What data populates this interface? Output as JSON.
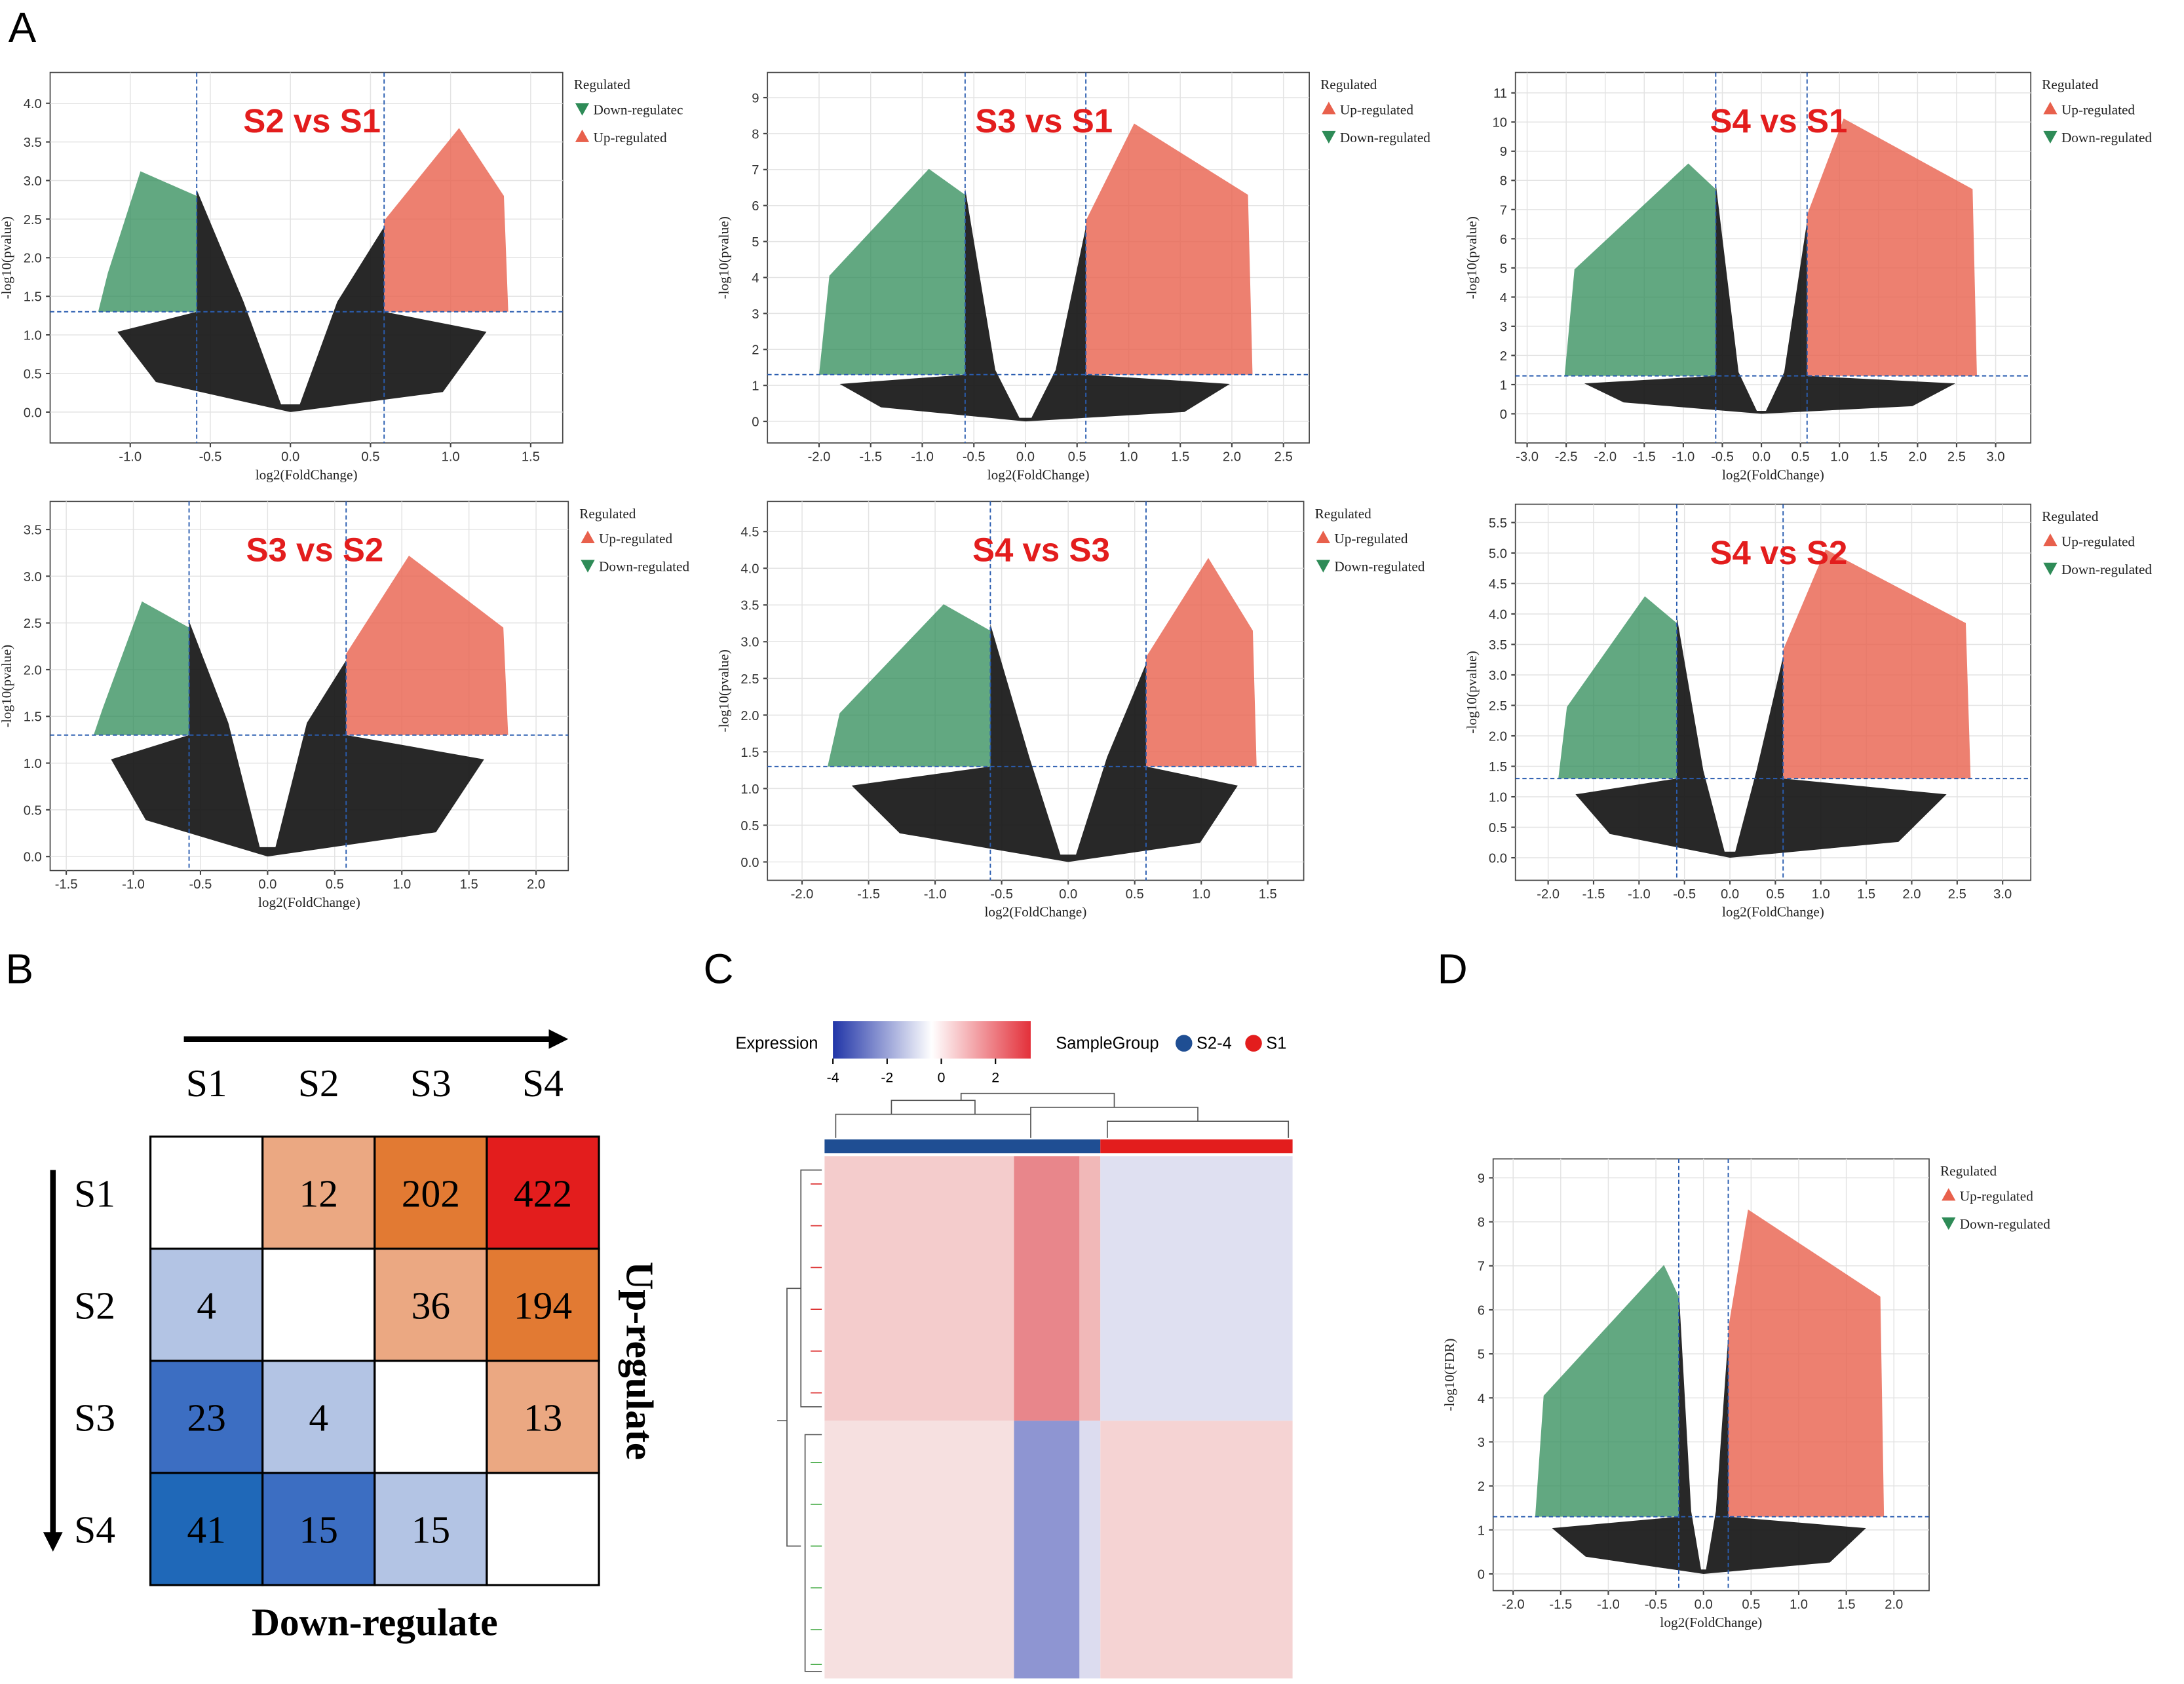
{
  "panel_labels": [
    "A",
    "B",
    "C",
    "D"
  ],
  "volcanoes": [
    {
      "title": "S2 vs S1",
      "xlabel": "log2(FoldChange)",
      "ylabel": "-log10(pvalue)",
      "xlim": [
        -1.5,
        1.7
      ],
      "ylim": [
        -0.4,
        4.4
      ],
      "grid": true,
      "fc_cutoff": 0.585,
      "p_cutoff": 1.3,
      "xticks": [
        {
          "value": -1,
          "label": "-1.0"
        },
        -0.5,
        {
          "value": 0,
          "label": "0.0"
        },
        0.5,
        {
          "value": 1,
          "label": "1.0"
        },
        1.5
      ],
      "yticks": [
        {
          "value": 0,
          "label": "0.0"
        },
        0.5,
        {
          "value": 1,
          "label": "1.0"
        },
        1.5,
        {
          "value": 2,
          "label": "2.0"
        },
        2.5,
        {
          "value": 3,
          "label": "3.0"
        },
        3.5,
        {
          "value": 4,
          "label": "4.0"
        }
      ],
      "legend_title": "Regulated",
      "series": [
        {
          "name": "Down-regulatec",
          "color": "#2e8b57",
          "marker": "down"
        },
        {
          "name": "Up-regulated",
          "color": "#e8604c",
          "marker": "up"
        }
      ]
    },
    {
      "title": "S3 vs S1",
      "xlabel": "log2(FoldChange)",
      "ylabel": "-log10(pvalue)",
      "xlim": [
        -2.5,
        2.75
      ],
      "ylim": [
        -0.6,
        9.7
      ],
      "grid": true,
      "fc_cutoff": 0.585,
      "p_cutoff": 1.3,
      "xticks": [
        {
          "value": -2,
          "label": "-2.0"
        },
        -1.5,
        {
          "value": -1,
          "label": "-1.0"
        },
        -0.5,
        {
          "value": 0,
          "label": "0.0"
        },
        0.5,
        {
          "value": 1,
          "label": "1.0"
        },
        1.5,
        {
          "value": 2,
          "label": "2.0"
        },
        2.5
      ],
      "yticks": [
        0,
        1,
        2,
        3,
        4,
        5,
        6,
        7,
        8,
        9
      ],
      "legend_title": "Regulated",
      "series": [
        {
          "name": "Up-regulated",
          "color": "#e8604c",
          "marker": "up"
        },
        {
          "name": "Down-regulated",
          "color": "#2e8b57",
          "marker": "down"
        }
      ]
    },
    {
      "title": "S4 vs S1",
      "xlabel": "log2(FoldChange)",
      "ylabel": "-log10(pvalue)",
      "xlim": [
        -3.15,
        3.45
      ],
      "ylim": [
        -1,
        11.7
      ],
      "grid": true,
      "fc_cutoff": 0.585,
      "p_cutoff": 1.3,
      "xticks": [
        {
          "value": -3,
          "label": "-3.0"
        },
        -2.5,
        {
          "value": -2,
          "label": "-2.0"
        },
        -1.5,
        {
          "value": -1,
          "label": "-1.0"
        },
        -0.5,
        {
          "value": 0,
          "label": "0.0"
        },
        0.5,
        {
          "value": 1,
          "label": "1.0"
        },
        1.5,
        {
          "value": 2,
          "label": "2.0"
        },
        2.5,
        {
          "value": 3,
          "label": "3.0"
        }
      ],
      "yticks": [
        0,
        1,
        2,
        3,
        4,
        5,
        6,
        7,
        8,
        9,
        10,
        11
      ],
      "legend_title": "Regulated",
      "series": [
        {
          "name": "Up-regulated",
          "color": "#e8604c",
          "marker": "up"
        },
        {
          "name": "Down-regulated",
          "color": "#2e8b57",
          "marker": "down"
        }
      ]
    },
    {
      "title": "S3 vs S2",
      "xlabel": "log2(FoldChange)",
      "ylabel": "-log10(pvalue)",
      "xlim": [
        -1.62,
        2.24
      ],
      "ylim": [
        -0.15,
        3.8
      ],
      "grid": true,
      "fc_cutoff": 0.585,
      "p_cutoff": 1.3,
      "xticks": [
        -1.5,
        {
          "value": -1,
          "label": "-1.0"
        },
        -0.5,
        {
          "value": 0,
          "label": "0.0"
        },
        0.5,
        {
          "value": 1,
          "label": "1.0"
        },
        1.5,
        {
          "value": 2,
          "label": "2.0"
        }
      ],
      "yticks": [
        {
          "value": 0,
          "label": "0.0"
        },
        0.5,
        {
          "value": 1,
          "label": "1.0"
        },
        1.5,
        {
          "value": 2,
          "label": "2.0"
        },
        2.5,
        {
          "value": 3,
          "label": "3.0"
        },
        3.5
      ],
      "legend_title": "Regulated",
      "series": [
        {
          "name": "Up-regulated",
          "color": "#e8604c",
          "marker": "up"
        },
        {
          "name": "Down-regulated",
          "color": "#2e8b57",
          "marker": "down"
        }
      ]
    },
    {
      "title": "S4 vs S3",
      "xlabel": "log2(FoldChange)",
      "ylabel": "-log10(pvalue)",
      "xlim": [
        -2.26,
        1.77
      ],
      "ylim": [
        -0.25,
        4.91
      ],
      "grid": true,
      "fc_cutoff": 0.585,
      "p_cutoff": 1.3,
      "xticks": [
        {
          "value": -2,
          "label": "-2.0"
        },
        -1.5,
        {
          "value": -1,
          "label": "-1.0"
        },
        -0.5,
        {
          "value": 0,
          "label": "0.0"
        },
        0.5,
        {
          "value": 1,
          "label": "1.0"
        },
        1.5
      ],
      "yticks": [
        {
          "value": 0,
          "label": "0.0"
        },
        0.5,
        {
          "value": 1,
          "label": "1.0"
        },
        1.5,
        {
          "value": 2,
          "label": "2.0"
        },
        2.5,
        {
          "value": 3,
          "label": "3.0"
        },
        3.5,
        {
          "value": 4,
          "label": "4.0"
        },
        4.5
      ],
      "legend_title": "Regulated",
      "series": [
        {
          "name": "Up-regulated",
          "color": "#e8604c",
          "marker": "up"
        },
        {
          "name": "Down-regulated",
          "color": "#2e8b57",
          "marker": "down"
        }
      ]
    },
    {
      "title": "S4 vs S2",
      "xlabel": "log2(FoldChange)",
      "ylabel": "-log10(pvalue)",
      "xlim": [
        -2.36,
        3.31
      ],
      "ylim": [
        -0.37,
        5.8
      ],
      "grid": true,
      "fc_cutoff": 0.585,
      "p_cutoff": 1.3,
      "xticks": [
        {
          "value": -2,
          "label": "-2.0"
        },
        -1.5,
        {
          "value": -1,
          "label": "-1.0"
        },
        -0.5,
        {
          "value": 0,
          "label": "0.0"
        },
        0.5,
        {
          "value": 1,
          "label": "1.0"
        },
        1.5,
        {
          "value": 2,
          "label": "2.0"
        },
        2.5,
        {
          "value": 3,
          "label": "3.0"
        }
      ],
      "yticks": [
        {
          "value": 0,
          "label": "0.0"
        },
        0.5,
        {
          "value": 1,
          "label": "1.0"
        },
        1.5,
        {
          "value": 2,
          "label": "2.0"
        },
        2.5,
        {
          "value": 3,
          "label": "3.0"
        },
        3.5,
        {
          "value": 4,
          "label": "4.0"
        },
        4.5,
        {
          "value": 5,
          "label": "5.0"
        },
        5.5
      ],
      "legend_title": "Regulated",
      "series": [
        {
          "name": "Up-regulated",
          "color": "#e8604c",
          "marker": "up"
        },
        {
          "name": "Down-regulated",
          "color": "#2e8b57",
          "marker": "down"
        }
      ]
    },
    {
      "xlabel": "log2(FoldChange)",
      "ylabel": "-log10(FDR)",
      "xlim": [
        -2.21,
        2.37
      ],
      "ylim": [
        -0.38,
        9.43
      ],
      "grid": true,
      "fc_cutoff": 0.26,
      "p_cutoff": 1.3,
      "xticks": [
        {
          "value": -2,
          "label": "-2.0"
        },
        -1.5,
        {
          "value": -1,
          "label": "-1.0"
        },
        -0.5,
        {
          "value": 0,
          "label": "0.0"
        },
        0.5,
        {
          "value": 1,
          "label": "1.0"
        },
        1.5,
        {
          "value": 2,
          "label": "2.0"
        }
      ],
      "yticks": [
        0,
        1,
        2,
        3,
        4,
        5,
        6,
        7,
        8,
        9
      ],
      "legend_title": "Regulated",
      "series": [
        {
          "name": "Up-regulated",
          "color": "#e8604c",
          "marker": "up"
        },
        {
          "name": "Down-regulated",
          "color": "#2e8b57",
          "marker": "down"
        }
      ]
    }
  ],
  "matrix": {
    "columns": [
      "S1",
      "S2",
      "S3",
      "S4"
    ],
    "rows": [
      "S1",
      "S2",
      "S3",
      "S4"
    ],
    "values": [
      [
        null,
        12,
        202,
        422
      ],
      [
        4,
        null,
        36,
        194
      ],
      [
        23,
        4,
        null,
        13
      ],
      [
        41,
        15,
        15,
        null
      ]
    ],
    "colors": [
      [
        "#ffffff",
        "#eba882",
        "#e27a33",
        "#e31d1d"
      ],
      [
        "#b3c4e4",
        "#ffffff",
        "#eba882",
        "#e27a33"
      ],
      [
        "#3c6ec2",
        "#b3c4e4",
        "#ffffff",
        "#eba882"
      ],
      [
        "#1f68b8",
        "#3c6ec2",
        "#b3c4e4",
        "#ffffff"
      ]
    ],
    "up_label": "Up-regulate",
    "down_label": "Down-regulate"
  },
  "heatmap": {
    "legend_title": "Expression",
    "cbar_lim": [
      -4,
      3.3
    ],
    "cbar_ticks": [
      -4,
      -2,
      0,
      2
    ],
    "group_title": "SampleGroup",
    "groups": [
      {
        "name": "S2-4",
        "color": "#1f4e93"
      },
      {
        "name": "S1",
        "color": "#e31d1d"
      }
    ]
  }
}
